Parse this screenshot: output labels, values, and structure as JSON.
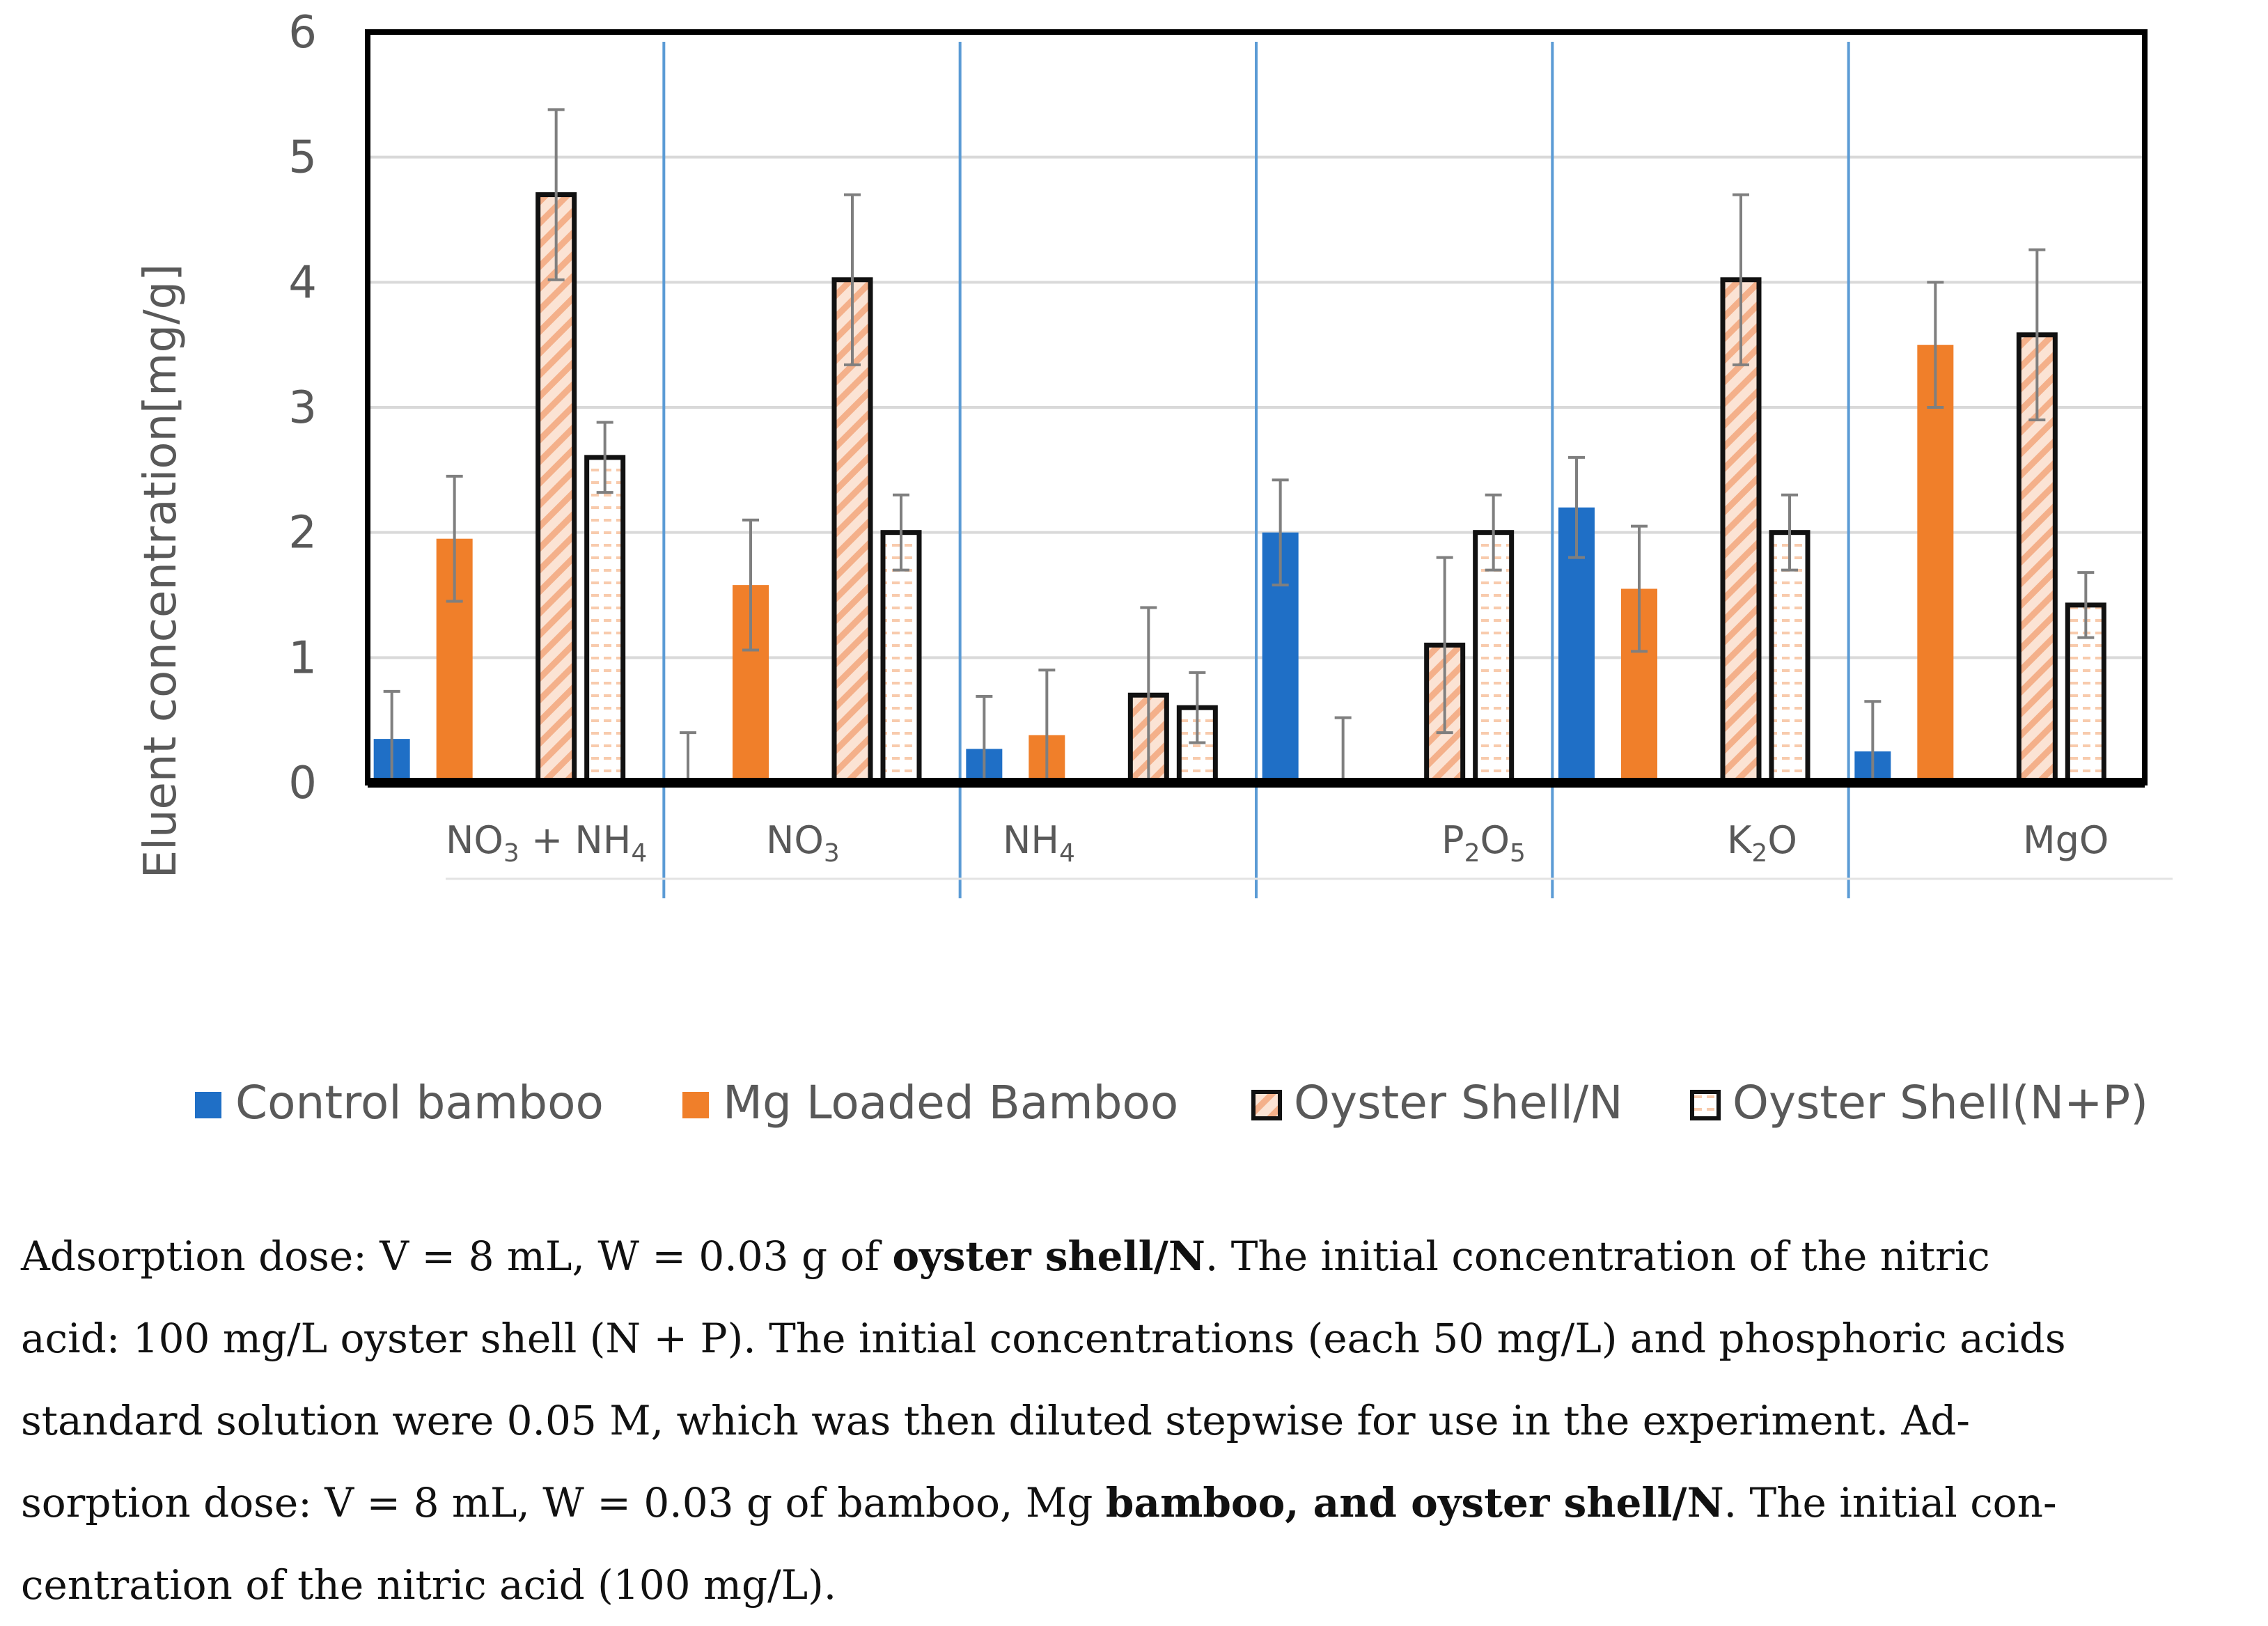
{
  "chart_data": {
    "type": "bar",
    "ylabel": "Eluent concentration[mg/g]",
    "ylim": [
      0,
      6
    ],
    "yticks": [
      "0",
      "1",
      "2",
      "3",
      "4",
      "5",
      "6"
    ],
    "grid": true,
    "legend_position": "bottom",
    "categories": [
      "NO3 + NH4",
      "NO3",
      "NH4",
      "P2O5",
      "K2O",
      "MgO"
    ],
    "series": [
      {
        "name": "Control bamboo",
        "color": "#1f6fc6",
        "pattern": "solid",
        "values": [
          0.35,
          0,
          0.27,
          2.0,
          2.2,
          0.25
        ],
        "errors": [
          0.38,
          0.4,
          0.42,
          0.42,
          0.4,
          0.4
        ]
      },
      {
        "name": "Mg Loaded Bamboo",
        "color": "#f07f2a",
        "pattern": "solid",
        "values": [
          1.95,
          1.58,
          0.38,
          0,
          1.55,
          3.5
        ],
        "errors": [
          0.5,
          0.52,
          0.52,
          0.52,
          0.5,
          0.5
        ]
      },
      {
        "name": "Oyster Shell/N",
        "color": "#f4b08a",
        "pattern": "hatch",
        "values": [
          4.7,
          4.02,
          0.7,
          1.1,
          4.02,
          3.58
        ],
        "errors": [
          0.68,
          0.68,
          0.7,
          0.7,
          0.68,
          0.68
        ]
      },
      {
        "name": "Oyster Shell(N+P)",
        "color": "#f8cbad",
        "pattern": "dots",
        "values": [
          2.6,
          2.0,
          0.6,
          2.0,
          2.0,
          1.42
        ],
        "errors": [
          0.28,
          0.3,
          0.28,
          0.3,
          0.3,
          0.26
        ]
      }
    ]
  },
  "caption": {
    "line1_a": "Adsorption dose: V = 8 mL, W = 0.03 g of ",
    "line1_b": "oyster shell/N",
    "line1_c": ". The initial concentration of the nitric",
    "line2": "acid: 100 mg/L oyster shell (N + P). The initial concentrations (each 50 mg/L) and phosphoric acids",
    "line3": "standard solution were 0.05 M, which was then diluted stepwise for use in the experiment. Ad-",
    "line4_a": "sorption dose: V = 8 mL, W = 0.03 g of bamboo, Mg ",
    "line4_b": "bamboo, and oyster shell/N",
    "line4_c": ". The initial con-",
    "line5": "centration of the nitric acid (100 mg/L)."
  }
}
